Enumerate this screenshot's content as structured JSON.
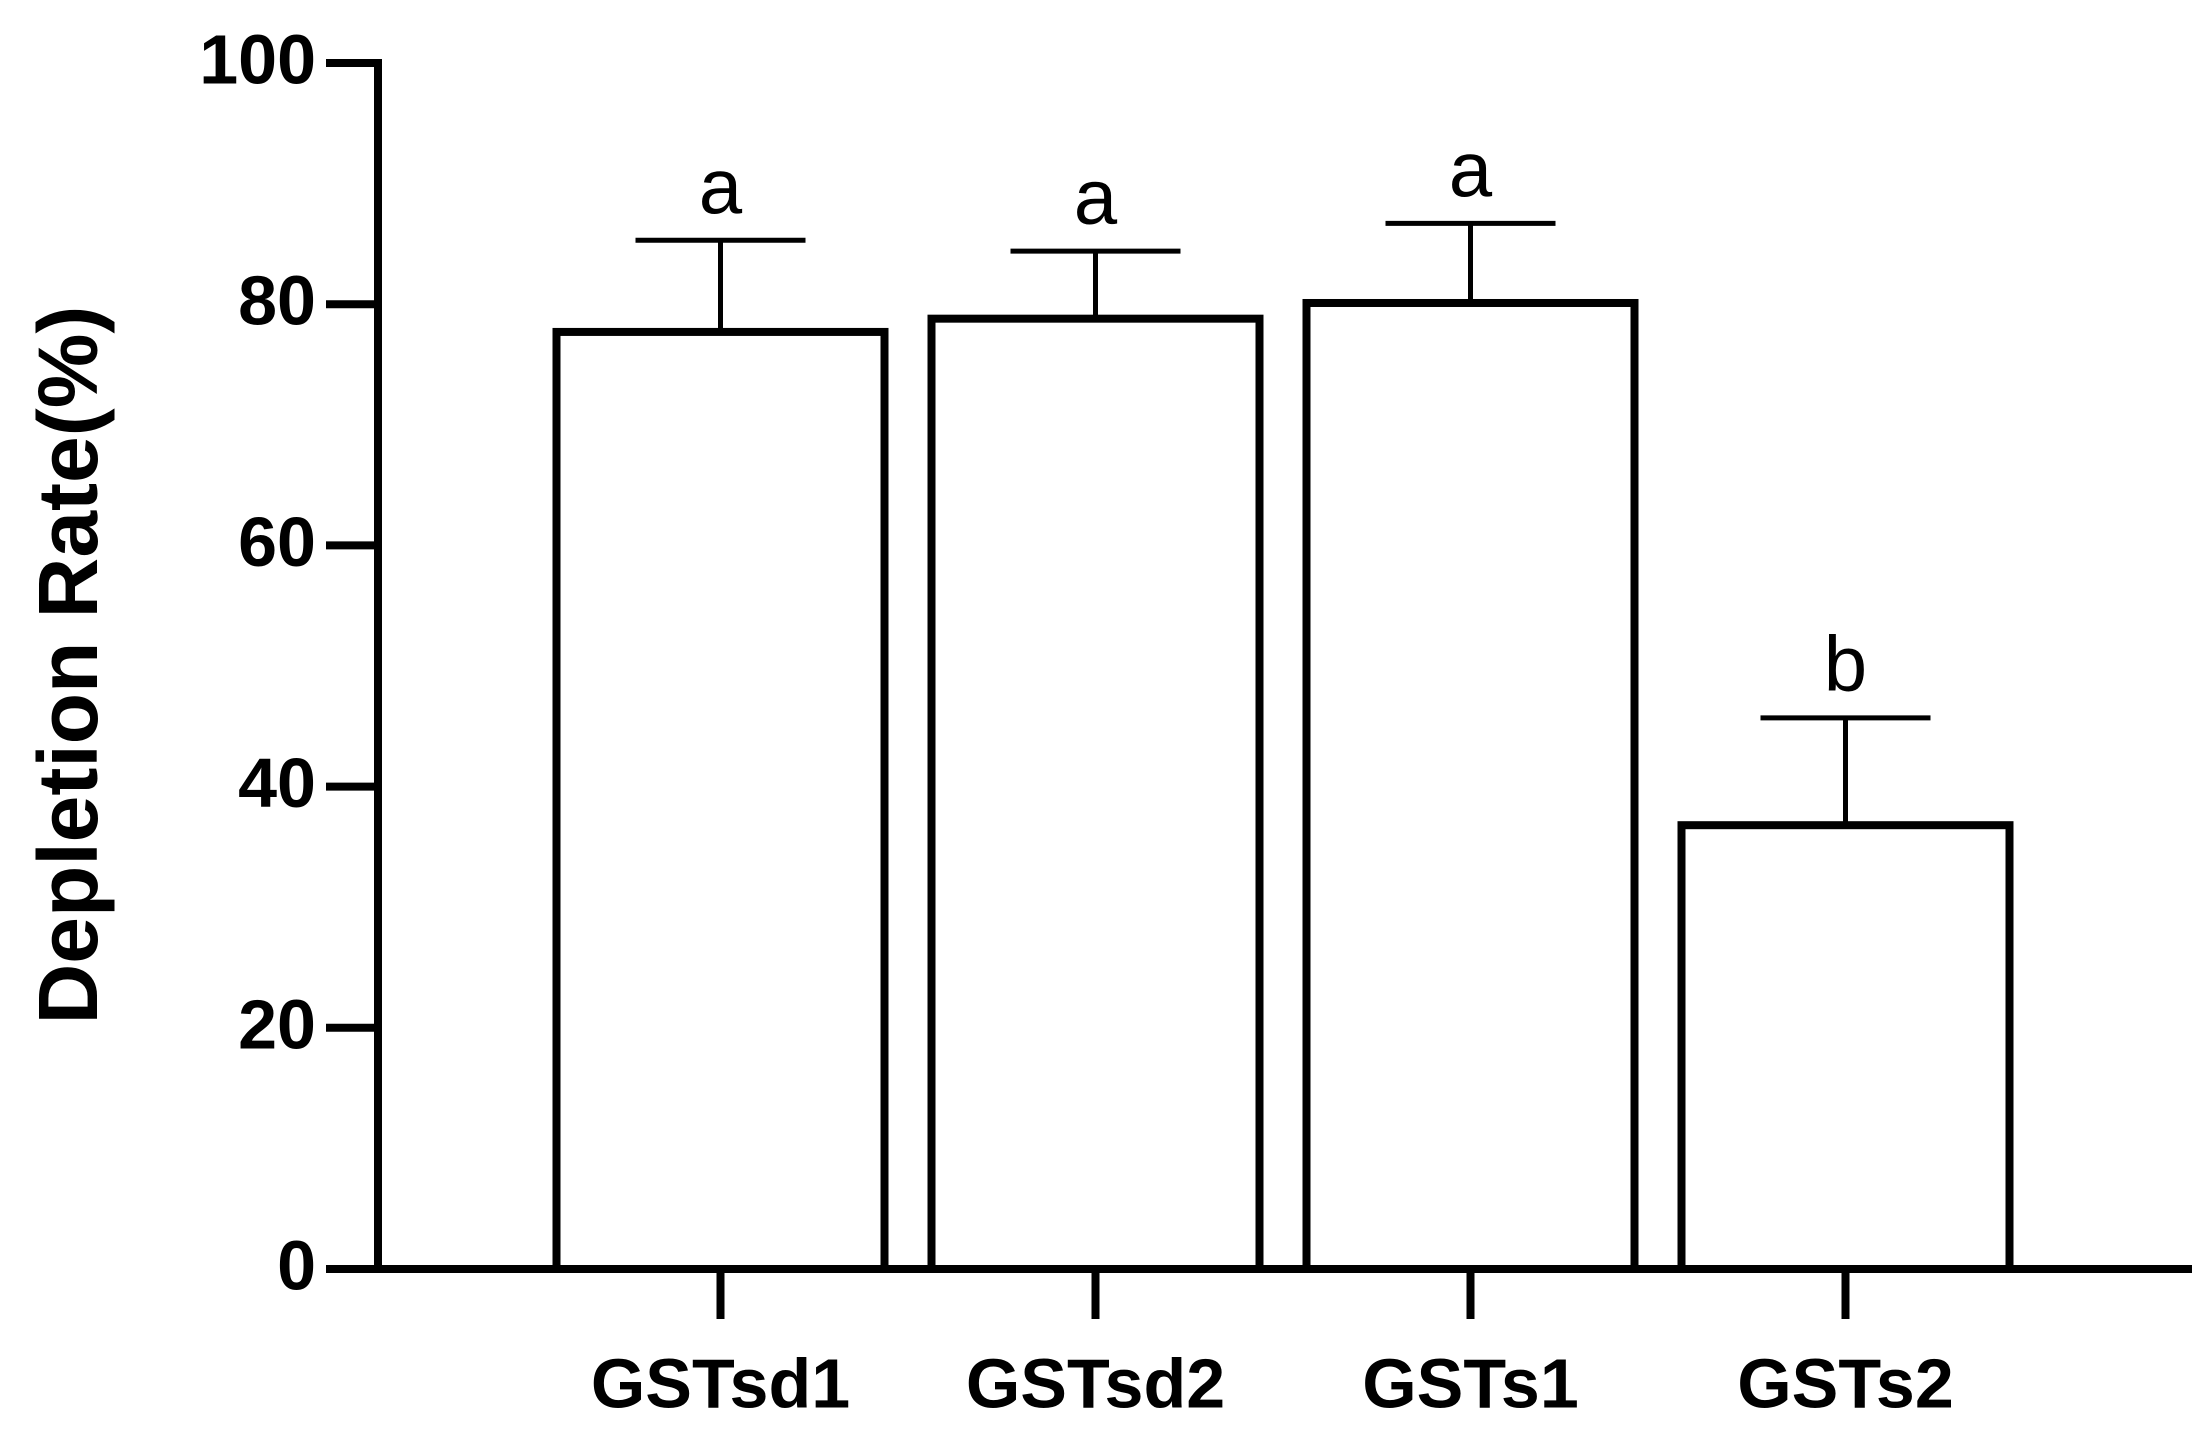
{
  "chart_data": {
    "type": "bar",
    "y_label": "Depletion Rate(%)",
    "categories": [
      "GSTsd1",
      "GSTsd2",
      "GSTs1",
      "GSTs2"
    ],
    "values": [
      77.7,
      78.8,
      80.1,
      36.8
    ],
    "errors": [
      7.6,
      5.6,
      6.6,
      8.9
    ],
    "annotations": [
      "a",
      "a",
      "a",
      "b"
    ],
    "color": "#ffffff",
    "edge_color": "#000000",
    "ylim": [
      0,
      100
    ],
    "yticks": [
      0,
      20,
      40,
      60,
      80,
      100
    ],
    "grid": false
  }
}
